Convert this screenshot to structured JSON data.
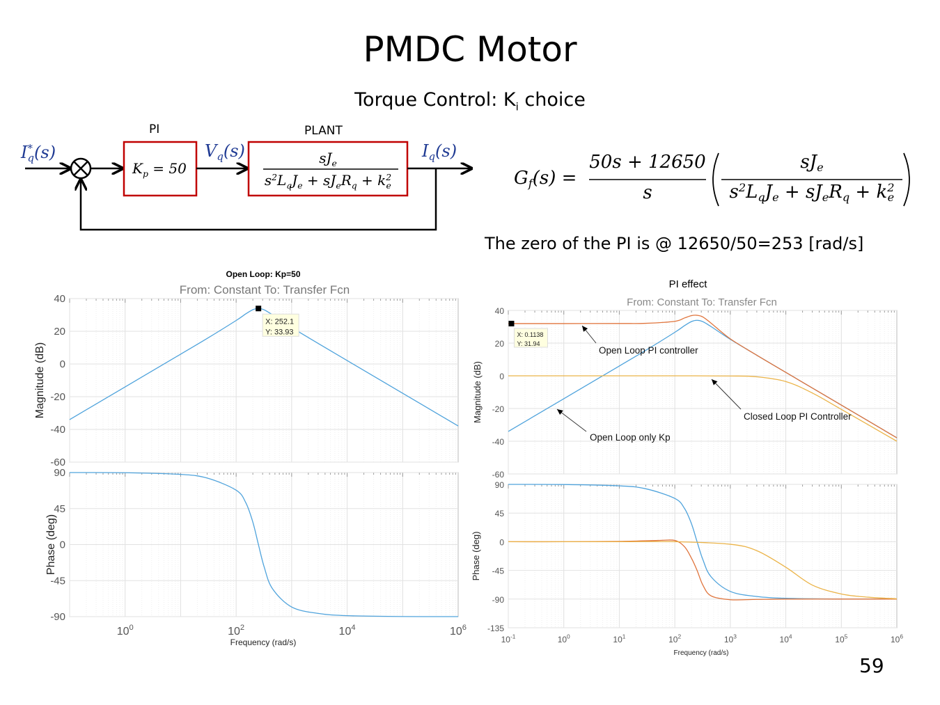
{
  "slide": {
    "title": "PMDC Motor",
    "subtitle_main": "Torque Control: K",
    "subtitle_sub": "i",
    "subtitle_rest": " choice",
    "zero_note": "The zero of the PI is @ 12650/50=253 [rad/s]",
    "page_number": "59"
  },
  "block_diagram": {
    "pi_label": "PI",
    "plant_label": "PLANT",
    "input_signal": [
      [
        "I",
        "q",
        "*"
      ],
      [
        "(s)",
        "",
        ""
      ]
    ],
    "voltage_signal": [
      [
        "V",
        "q",
        ""
      ],
      [
        "(s)",
        "",
        ""
      ]
    ],
    "output_signal": [
      [
        "I",
        "q",
        ""
      ],
      [
        "(s)",
        "",
        ""
      ]
    ],
    "pi_block": [
      [
        "K",
        "p",
        ""
      ],
      [
        " = 50",
        "",
        ""
      ]
    ],
    "plant_num": [
      [
        "sJ",
        "e",
        ""
      ]
    ],
    "plant_den": [
      [
        "s",
        "",
        "2"
      ],
      [
        "L",
        "q",
        ""
      ],
      [
        "J",
        "e",
        ""
      ],
      [
        " + sJ",
        "e",
        ""
      ],
      [
        "R",
        "q",
        ""
      ],
      [
        " + k",
        "e",
        "2"
      ]
    ],
    "accent_color": "#c00000",
    "signal_color": "#1f3a93"
  },
  "equation": {
    "lhs": [
      [
        "G",
        "f",
        ""
      ],
      [
        "(s) =",
        "",
        ""
      ]
    ],
    "pi_num": [
      [
        "50s + 12650",
        "",
        ""
      ]
    ],
    "pi_den": [
      [
        "s",
        "",
        ""
      ]
    ],
    "plant_num": [
      [
        "sJ",
        "e",
        ""
      ]
    ],
    "plant_den": [
      [
        "s",
        "",
        "2"
      ],
      [
        "L",
        "q",
        ""
      ],
      [
        "J",
        "e",
        ""
      ],
      [
        " + sJ",
        "e",
        ""
      ],
      [
        "R",
        "q",
        ""
      ],
      [
        " + k",
        "e",
        "2"
      ]
    ]
  },
  "chart_data": [
    {
      "type": "line",
      "title": "Open Loop: Kp=50",
      "subtitle": "From: Constant  To: Transfer Fcn",
      "xlabel": "Frequency  (rad/s)",
      "xscale": "log",
      "xlim": [
        0.1,
        1000000
      ],
      "xticks": [
        {
          "value": 1,
          "base": "10",
          "exp": "0"
        },
        {
          "value": 100,
          "base": "10",
          "exp": "2"
        },
        {
          "value": 10000,
          "base": "10",
          "exp": "4"
        },
        {
          "value": 1000000,
          "base": "10",
          "exp": "6"
        }
      ],
      "grid": true,
      "magnitude": {
        "ylabel": "Magnitude (dB)",
        "ylim": [
          -60,
          40
        ],
        "yticks": [
          40,
          20,
          0,
          -20,
          -40,
          -60
        ],
        "series": [
          {
            "color": "#4fa3dc",
            "x": [
              0.1,
              1,
              10,
              30,
              100,
              150,
              200,
              252,
              320,
              450,
              1000,
              3000,
              10000,
              100000,
              1000000
            ],
            "y": [
              -34.0,
              -14.0,
              6.0,
              15.6,
              26.6,
              30.7,
              33.2,
              33.93,
              33.1,
              30.1,
              22.3,
              12.6,
              2.1,
              -17.9,
              -37.9
            ]
          }
        ],
        "datatip": {
          "x": 252.1,
          "y": 33.93,
          "x_text": "X: 252.1",
          "y_text": "Y: 33.93"
        }
      },
      "phase": {
        "ylabel": "Phase (deg)",
        "ylim": [
          -90,
          90
        ],
        "yticks": [
          90,
          45,
          0,
          -45,
          -90
        ],
        "series": [
          {
            "color": "#4fa3dc",
            "x": [
              0.1,
              1,
              10,
              30,
              100,
              150,
              200,
              252,
              320,
              450,
              1000,
              3000,
              10000,
              100000,
              1000000
            ],
            "y": [
              90,
              89.8,
              87.7,
              83.1,
              68,
              52,
              28,
              0,
              -28,
              -55,
              -78,
              -86,
              -88.8,
              -89.9,
              -90
            ]
          }
        ]
      }
    },
    {
      "type": "line",
      "title": "PI effect",
      "subtitle": "From: Constant  To: Transfer Fcn",
      "xlabel": "Frequency  (rad/s)",
      "xscale": "log",
      "xlim": [
        0.1,
        1000000
      ],
      "xticks": [
        {
          "value": 0.1,
          "base": "10",
          "exp": "-1"
        },
        {
          "value": 1,
          "base": "10",
          "exp": "0"
        },
        {
          "value": 10,
          "base": "10",
          "exp": "1"
        },
        {
          "value": 100,
          "base": "10",
          "exp": "2"
        },
        {
          "value": 1000,
          "base": "10",
          "exp": "3"
        },
        {
          "value": 10000,
          "base": "10",
          "exp": "4"
        },
        {
          "value": 100000,
          "base": "10",
          "exp": "5"
        },
        {
          "value": 1000000,
          "base": "10",
          "exp": "6"
        }
      ],
      "grid": true,
      "magnitude": {
        "ylabel": "Magnitude (dB)",
        "ylim": [
          -60,
          40
        ],
        "yticks": [
          40,
          20,
          0,
          -20,
          -40,
          -60
        ],
        "series": [
          {
            "color": "#4fa3dc",
            "x": [
              0.1,
              1,
              10,
              30,
              100,
              150,
              200,
              252,
              320,
              450,
              1000,
              3000,
              10000,
              100000,
              1000000
            ],
            "y": [
              -34.0,
              -14.0,
              6.0,
              15.6,
              26.6,
              30.7,
              33.2,
              33.93,
              33.1,
              30.1,
              22.3,
              12.6,
              2.1,
              -17.9,
              -37.9
            ]
          },
          {
            "color": "#e0743c",
            "x": [
              0.1,
              1,
              10,
              30,
              100,
              150,
              200,
              252,
              320,
              450,
              1000,
              3000,
              10000,
              100000,
              1000000
            ],
            "y": [
              31.94,
              31.94,
              32.0,
              32.1,
              33.3,
              35.4,
              36.8,
              37.0,
              36.0,
              32.2,
              22.6,
              12.6,
              2.1,
              -17.9,
              -37.9
            ]
          },
          {
            "color": "#ebb347",
            "x": [
              0.1,
              1,
              10,
              100,
              1000,
              3000,
              10000,
              30000,
              100000,
              1000000
            ],
            "y": [
              0,
              0,
              0,
              0,
              -0.1,
              -0.6,
              -3.5,
              -10.5,
              -20.5,
              -40
            ]
          }
        ],
        "datatip": {
          "x": 0.1138,
          "y": 31.94,
          "x_text": "X: 0.1138",
          "y_text": "Y: 31.94"
        },
        "annotations": [
          {
            "text": "Open Loop PI controller"
          },
          {
            "text": "Open Loop only Kp"
          },
          {
            "text": "Closed Loop PI  Controller"
          }
        ]
      },
      "phase": {
        "ylabel": "Phase (deg)",
        "ylim": [
          -135,
          90
        ],
        "yticks": [
          90,
          45,
          0,
          -45,
          -90,
          -135
        ],
        "series": [
          {
            "color": "#4fa3dc",
            "x": [
              0.1,
              1,
              10,
              30,
              100,
              150,
              200,
              252,
              320,
              450,
              1000,
              3000,
              10000,
              100000,
              1000000
            ],
            "y": [
              90,
              89.8,
              87.7,
              83.1,
              68,
              52,
              28,
              0,
              -28,
              -55,
              -78,
              -86,
              -88.8,
              -89.9,
              -90
            ]
          },
          {
            "color": "#e0743c",
            "x": [
              0.1,
              1,
              10,
              50,
              100,
              150,
              200,
              252,
              320,
              450,
              1000,
              3000,
              10000,
              100000,
              1000000
            ],
            "y": [
              0,
              0,
              0.5,
              2,
              2,
              -8,
              -26,
              -45,
              -68,
              -85,
              -91,
              -90.5,
              -90,
              -90,
              -90
            ]
          },
          {
            "color": "#ebb347",
            "x": [
              0.1,
              1,
              10,
              100,
              1000,
              3000,
              10000,
              30000,
              100000,
              300000,
              1000000
            ],
            "y": [
              0,
              0,
              0,
              0,
              -4,
              -14,
              -40,
              -68,
              -82,
              -87,
              -89.5
            ]
          }
        ]
      }
    }
  ]
}
